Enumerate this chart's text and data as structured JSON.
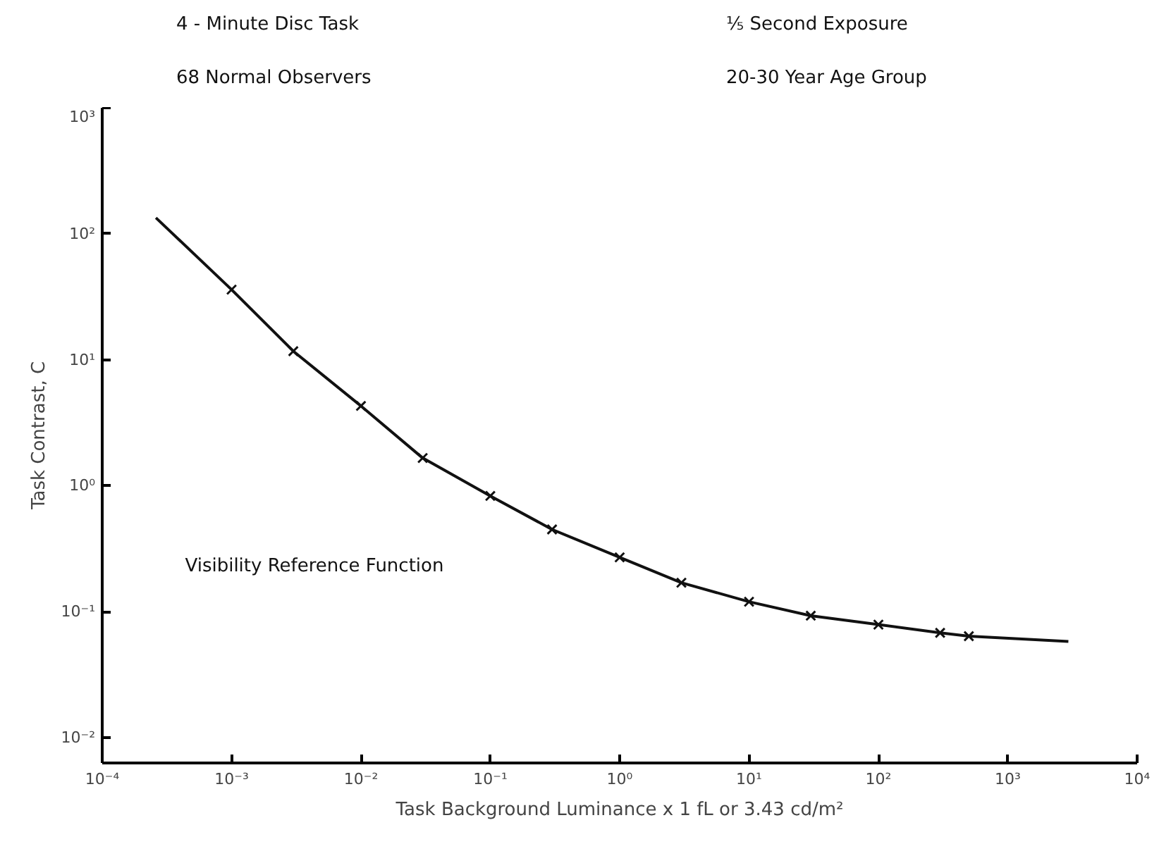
{
  "chart_data": {
    "type": "line",
    "xlabel": "Task Background Luminance x 1 fL or 3.43 cd/m²",
    "ylabel": "Task Contrast, C",
    "annotations": [
      "4 - Minute Disc Task",
      "68 Normal Observers",
      "⅕ Second Exposure",
      "20-30 Year Age Group",
      "Visibility Reference Function"
    ],
    "log": "xy",
    "xlim": [
      0.0001,
      10000
    ],
    "ylim": [
      0.0063,
      1000
    ],
    "xticks": [
      {
        "value": 0.0001,
        "label": "10⁻⁴"
      },
      {
        "value": 0.001,
        "label": "10⁻³"
      },
      {
        "value": 0.01,
        "label": "10⁻²"
      },
      {
        "value": 0.1,
        "label": "10⁻¹"
      },
      {
        "value": 1,
        "label": "10⁰"
      },
      {
        "value": 10,
        "label": "10¹"
      },
      {
        "value": 100,
        "label": "10²"
      },
      {
        "value": 1000,
        "label": "10³"
      },
      {
        "value": 10000,
        "label": "10⁴"
      }
    ],
    "yticks": [
      {
        "value": 0.01,
        "label": "10⁻²"
      },
      {
        "value": 0.1,
        "label": "10⁻¹"
      },
      {
        "value": 1,
        "label": "10⁰"
      },
      {
        "value": 10,
        "label": "10¹"
      },
      {
        "value": 100,
        "label": "10²"
      },
      {
        "value": 1000,
        "label": "10³"
      }
    ],
    "series": [
      {
        "color": "#111111",
        "marker": "none",
        "line_style": "solid",
        "x": [
          0.00026,
          0.001,
          0.003,
          0.01,
          0.03,
          0.1,
          0.3,
          1,
          3,
          10,
          30,
          100,
          300,
          500,
          2940
        ],
        "values": [
          134,
          36,
          11.7,
          4.3,
          1.66,
          0.83,
          0.45,
          0.27,
          0.17,
          0.12,
          0.093,
          0.079,
          0.068,
          0.064,
          0.058
        ]
      },
      {
        "type": "scatter",
        "color": "#111111",
        "marker": "cross",
        "x": [
          0.001,
          0.003,
          0.01,
          0.03,
          0.1,
          0.3,
          1,
          3,
          10,
          30,
          100,
          300,
          500
        ],
        "values": [
          36,
          11.7,
          4.3,
          1.66,
          0.83,
          0.45,
          0.27,
          0.17,
          0.12,
          0.093,
          0.079,
          0.068,
          0.064
        ]
      }
    ]
  }
}
